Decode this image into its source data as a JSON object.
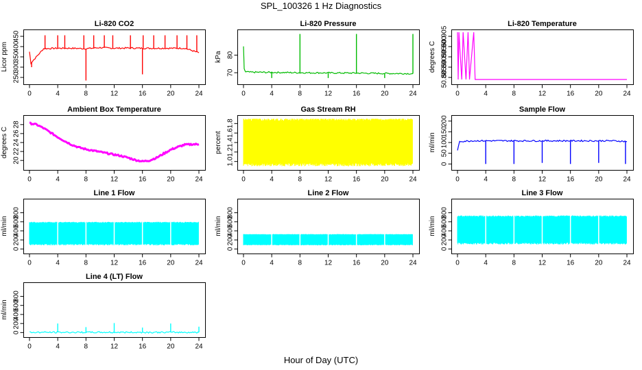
{
  "page": {
    "title": "SPL_100326  1 Hz Diagnostics",
    "xlabel": "Hour of Day (UTC)"
  },
  "chart_data": [
    {
      "type": "line",
      "title": "Li-820 CO2",
      "ylabel": "Licor ppm",
      "color": "#ff0000",
      "xlim": [
        0,
        24
      ],
      "xticks": [
        "0",
        "4",
        "8",
        "12",
        "16",
        "20",
        "24"
      ],
      "ylim": [
        230,
        470
      ],
      "yticks": [
        "250",
        "300",
        "350",
        "400",
        "450"
      ],
      "x": [
        0,
        0.2,
        2,
        4,
        6,
        8,
        10,
        12,
        14,
        16,
        18,
        20,
        22,
        24
      ],
      "y": [
        375,
        320,
        390,
        392,
        392,
        390,
        395,
        392,
        393,
        392,
        392,
        392,
        392,
        370
      ],
      "spikes_up": [
        [
          2.2,
          455
        ],
        [
          4,
          455
        ],
        [
          5,
          455
        ],
        [
          7.7,
          455
        ],
        [
          9.1,
          455
        ],
        [
          10.6,
          455
        ],
        [
          11.8,
          455
        ],
        [
          14.3,
          455
        ],
        [
          16.1,
          455
        ],
        [
          17.6,
          455
        ],
        [
          19.2,
          455
        ],
        [
          20.9,
          455
        ],
        [
          22.3,
          455
        ],
        [
          23.7,
          455
        ]
      ],
      "spikes_down": [
        [
          8,
          235
        ],
        [
          16,
          265
        ],
        [
          0.3,
          300
        ]
      ]
    },
    {
      "type": "line",
      "title": "Li-820 Pressure",
      "ylabel": "kPa",
      "color": "#00bb00",
      "xlim": [
        0,
        24
      ],
      "xticks": [
        "0",
        "4",
        "8",
        "12",
        "16",
        "20",
        "24"
      ],
      "ylim": [
        65,
        93
      ],
      "yticks": [
        "70",
        "80"
      ],
      "x": [
        0,
        0.1,
        0.3,
        1,
        4,
        8,
        12,
        16,
        20,
        24
      ],
      "y": [
        85,
        72,
        70.5,
        70.3,
        70.2,
        70,
        69.9,
        69.8,
        69.6,
        69.5
      ],
      "spikes_up": [
        [
          8,
          92
        ],
        [
          16,
          92
        ],
        [
          24,
          92
        ]
      ],
      "spikes_down": [
        [
          4,
          67
        ],
        [
          12,
          67
        ],
        [
          20,
          67
        ]
      ]
    },
    {
      "type": "line",
      "title": "Li-820 Temperature",
      "ylabel": "degrees C",
      "color": "#ff00ff",
      "xlim": [
        0,
        24
      ],
      "xticks": [
        "0",
        "4",
        "8",
        "12",
        "16",
        "20",
        "24"
      ],
      "ylim": [
        50.883,
        50.907
      ],
      "yticks": [
        "50.885",
        "50.890",
        "50.895",
        "50.900",
        "50.905"
      ],
      "x": [
        0,
        0.1,
        0.2,
        0.6,
        0.8,
        1.2,
        1.5,
        1.7,
        2.3,
        2.5,
        24
      ],
      "y": [
        50.907,
        50.884,
        50.907,
        50.884,
        50.907,
        50.884,
        50.907,
        50.884,
        50.907,
        50.884,
        50.884
      ]
    },
    {
      "type": "line",
      "title": "Ambient Box Temperature",
      "ylabel": "degrees C",
      "color": "#ff00ff",
      "xlim": [
        0,
        24
      ],
      "xticks": [
        "0",
        "4",
        "8",
        "12",
        "16",
        "20",
        "24"
      ],
      "ylim": [
        18.5,
        29.5
      ],
      "yticks": [
        "20",
        "22",
        "24",
        "26",
        "28"
      ],
      "x": [
        0,
        1,
        2,
        3,
        4,
        5,
        6,
        7,
        8,
        9,
        10,
        11,
        12,
        13,
        14,
        15,
        16,
        17,
        18,
        19,
        20,
        21,
        22,
        23,
        24
      ],
      "y": [
        28.3,
        28.0,
        27.2,
        26.2,
        25.2,
        24.3,
        23.5,
        22.9,
        22.5,
        22.2,
        21.9,
        21.6,
        21.3,
        21.0,
        20.6,
        20.1,
        19.8,
        20.0,
        20.6,
        21.5,
        22.4,
        23.0,
        23.5,
        23.6,
        23.6
      ]
    },
    {
      "type": "area",
      "title": "Gas Stream RH",
      "ylabel": "percent",
      "color": "#ffff00",
      "xlim": [
        0,
        24
      ],
      "xticks": [
        "0",
        "4",
        "8",
        "12",
        "16",
        "20",
        "24"
      ],
      "ylim": [
        0.88,
        1.92
      ],
      "yticks": [
        "1.0",
        "1.2",
        "1.4",
        "1.6",
        "1.8"
      ],
      "band": {
        "low": 0.9,
        "high": 1.9
      }
    },
    {
      "type": "line",
      "title": "Sample Flow",
      "ylabel": "ml/min",
      "color": "#0000ff",
      "xlim": [
        0,
        24
      ],
      "xticks": [
        "0",
        "4",
        "8",
        "12",
        "16",
        "20",
        "24"
      ],
      "ylim": [
        -15,
        215
      ],
      "yticks": [
        "0",
        "50",
        "100",
        "150",
        "200"
      ],
      "x": [
        0,
        0.3,
        2,
        6,
        10,
        14,
        18,
        22,
        24
      ],
      "y": [
        60,
        105,
        108,
        108,
        108,
        108,
        108,
        108,
        105
      ],
      "spikes_down": [
        [
          4,
          0
        ],
        [
          8,
          0
        ],
        [
          12,
          5
        ],
        [
          16,
          0
        ],
        [
          20,
          5
        ],
        [
          23.8,
          0
        ]
      ]
    },
    {
      "type": "area",
      "title": "Line 1 Flow",
      "ylabel": "ml/min",
      "color": "#00ffff",
      "xlim": [
        0,
        24
      ],
      "xticks": [
        "0",
        "4",
        "8",
        "12",
        "16",
        "20",
        "24"
      ],
      "ylim": [
        -40,
        1050
      ],
      "yticks": [
        "0",
        "200",
        "400",
        "600",
        "800"
      ],
      "band": {
        "low": 80,
        "high": 600
      }
    },
    {
      "type": "area",
      "title": "Line 2 Flow",
      "ylabel": "ml/min",
      "color": "#00ffff",
      "xlim": [
        0,
        24
      ],
      "xticks": [
        "0",
        "4",
        "8",
        "12",
        "16",
        "20",
        "24"
      ],
      "ylim": [
        -40,
        1050
      ],
      "yticks": [
        "0",
        "200",
        "400",
        "600",
        "800"
      ],
      "band": {
        "low": 80,
        "high": 330
      }
    },
    {
      "type": "area",
      "title": "Line 3 Flow",
      "ylabel": "ml/min",
      "color": "#00ffff",
      "xlim": [
        0,
        24
      ],
      "xticks": [
        "0",
        "4",
        "8",
        "12",
        "16",
        "20",
        "24"
      ],
      "ylim": [
        -40,
        1050
      ],
      "yticks": [
        "0",
        "200",
        "400",
        "600",
        "800"
      ],
      "band": {
        "low": 100,
        "high": 740
      }
    },
    {
      "type": "line",
      "title": "Line 4 (LT) Flow",
      "ylabel": "ml/min",
      "color": "#00ffff",
      "xlim": [
        0,
        24
      ],
      "xticks": [
        "0",
        "4",
        "8",
        "12",
        "16",
        "20",
        "24"
      ],
      "ylim": [
        -40,
        1050
      ],
      "yticks": [
        "0",
        "200",
        "400",
        "600",
        "800"
      ],
      "x": [
        0,
        24
      ],
      "y": [
        5,
        5
      ],
      "spikes_up": [
        [
          4,
          200
        ],
        [
          8,
          120
        ],
        [
          12,
          210
        ],
        [
          16,
          110
        ],
        [
          20,
          200
        ],
        [
          24,
          130
        ]
      ]
    }
  ]
}
